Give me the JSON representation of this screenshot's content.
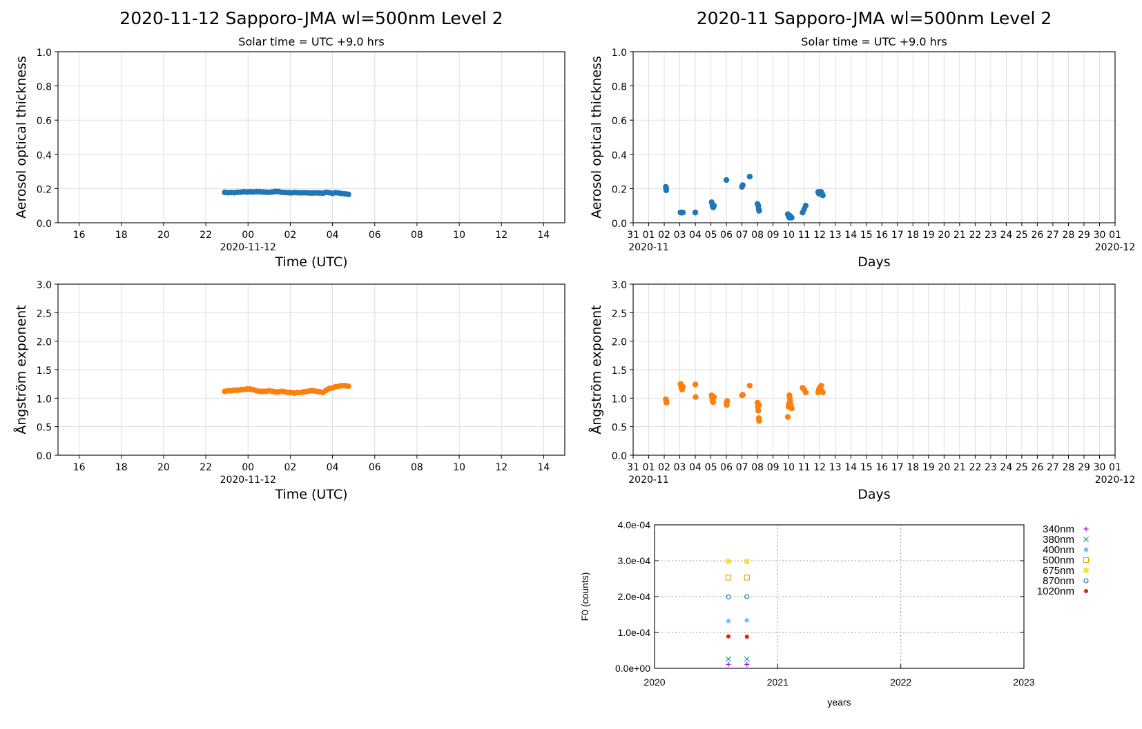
{
  "chart_data": [
    {
      "id": "daily-aot",
      "type": "scatter",
      "title": "2020-11-12  Sapporo-JMA  wl=500nm  Level 2",
      "subtitle": "Solar time = UTC +9.0 hrs",
      "xlabel": "Time (UTC)",
      "ylabel": "Aerosol optical thickness",
      "x_date_label": "2020-11-12",
      "xlim": [
        15,
        39
      ],
      "x_ticks": [
        {
          "v": 16,
          "label": "16"
        },
        {
          "v": 18,
          "label": "18"
        },
        {
          "v": 20,
          "label": "20"
        },
        {
          "v": 22,
          "label": "22"
        },
        {
          "v": 24,
          "label": "00"
        },
        {
          "v": 26,
          "label": "02"
        },
        {
          "v": 28,
          "label": "04"
        },
        {
          "v": 30,
          "label": "06"
        },
        {
          "v": 32,
          "label": "08"
        },
        {
          "v": 34,
          "label": "10"
        },
        {
          "v": 36,
          "label": "12"
        },
        {
          "v": 38,
          "label": "14"
        }
      ],
      "ylim": [
        0,
        1.0
      ],
      "y_ticks": [
        "0.0",
        "0.2",
        "0.4",
        "0.6",
        "0.8",
        "1.0"
      ],
      "color": "#1f77b4",
      "grid": true,
      "series": [
        {
          "x": [
            22.9,
            23.05,
            23.2,
            23.35,
            23.5,
            23.65,
            23.8,
            23.95,
            24.1,
            24.25,
            24.4,
            24.55,
            24.7,
            24.85,
            25.0,
            25.15,
            25.3,
            25.45,
            25.6,
            25.75,
            25.9,
            26.05,
            26.2,
            26.35,
            26.5,
            26.65,
            26.8,
            26.95,
            27.1,
            27.25,
            27.4,
            27.55,
            27.7,
            27.85,
            28.0,
            28.15,
            28.3,
            28.45,
            28.6,
            28.75
          ],
          "y": [
            0.178,
            0.176,
            0.177,
            0.176,
            0.178,
            0.179,
            0.181,
            0.18,
            0.181,
            0.18,
            0.182,
            0.181,
            0.18,
            0.179,
            0.178,
            0.18,
            0.183,
            0.182,
            0.178,
            0.177,
            0.176,
            0.175,
            0.177,
            0.176,
            0.175,
            0.176,
            0.175,
            0.174,
            0.174,
            0.175,
            0.174,
            0.173,
            0.178,
            0.176,
            0.172,
            0.176,
            0.174,
            0.171,
            0.169,
            0.166
          ]
        }
      ]
    },
    {
      "id": "monthly-aot",
      "type": "scatter",
      "title": "2020-11  Sapporo-JMA  wl=500nm  Level 2",
      "subtitle": "Solar time = UTC +9.0 hrs",
      "xlabel": "Days",
      "ylabel": "Aerosol optical thickness",
      "x_start_label": "2020-11",
      "x_end_label": "2020-12",
      "xlim": [
        -0.05,
        30.0
      ],
      "x_ticks_days": [
        "31",
        "01",
        "02",
        "03",
        "04",
        "05",
        "06",
        "07",
        "08",
        "09",
        "10",
        "11",
        "12",
        "13",
        "14",
        "15",
        "16",
        "17",
        "18",
        "19",
        "20",
        "21",
        "22",
        "23",
        "24",
        "25",
        "26",
        "27",
        "28",
        "29",
        "30",
        "01"
      ],
      "ylim": [
        0,
        1.0
      ],
      "y_ticks": [
        "0.0",
        "0.2",
        "0.4",
        "0.6",
        "0.8",
        "1.0"
      ],
      "color": "#1f77b4",
      "grid": true,
      "series": [
        {
          "x": [
            1.1,
            1.12,
            1.13,
            2.05,
            2.1,
            2.15,
            2.2,
            3.0,
            4.05,
            4.1,
            4.15,
            4.2,
            5.0,
            6.0,
            6.05,
            6.5,
            7.0,
            7.05,
            7.08,
            7.1,
            8.95,
            9.0,
            9.05,
            9.1,
            9.15,
            9.2,
            9.9,
            10.0,
            10.1,
            10.9,
            10.95,
            11.0,
            11.05,
            11.1,
            11.15,
            11.2
          ],
          "y": [
            0.21,
            0.2,
            0.19,
            0.06,
            0.06,
            0.06,
            0.06,
            0.06,
            0.12,
            0.1,
            0.09,
            0.1,
            0.25,
            0.21,
            0.22,
            0.27,
            0.11,
            0.1,
            0.08,
            0.07,
            0.05,
            0.04,
            0.03,
            0.04,
            0.03,
            0.03,
            0.06,
            0.08,
            0.1,
            0.18,
            0.17,
            0.18,
            0.17,
            0.18,
            0.17,
            0.16
          ]
        }
      ]
    },
    {
      "id": "daily-angstrom",
      "type": "scatter",
      "xlabel": "Time (UTC)",
      "ylabel": "Ångström exponent",
      "x_date_label": "2020-11-12",
      "xlim": [
        15,
        39
      ],
      "x_ticks": [
        {
          "v": 16,
          "label": "16"
        },
        {
          "v": 18,
          "label": "18"
        },
        {
          "v": 20,
          "label": "20"
        },
        {
          "v": 22,
          "label": "22"
        },
        {
          "v": 24,
          "label": "00"
        },
        {
          "v": 26,
          "label": "02"
        },
        {
          "v": 28,
          "label": "04"
        },
        {
          "v": 30,
          "label": "06"
        },
        {
          "v": 32,
          "label": "08"
        },
        {
          "v": 34,
          "label": "10"
        },
        {
          "v": 36,
          "label": "12"
        },
        {
          "v": 38,
          "label": "14"
        }
      ],
      "ylim": [
        0,
        3.0
      ],
      "y_ticks": [
        "0.0",
        "0.5",
        "1.0",
        "1.5",
        "2.0",
        "2.5",
        "3.0"
      ],
      "color": "#ff7f0e",
      "grid": true,
      "series": [
        {
          "x": [
            22.9,
            23.05,
            23.2,
            23.35,
            23.5,
            23.65,
            23.8,
            23.95,
            24.1,
            24.25,
            24.4,
            24.55,
            24.7,
            24.85,
            25.0,
            25.15,
            25.3,
            25.45,
            25.6,
            25.75,
            25.9,
            26.05,
            26.2,
            26.35,
            26.5,
            26.65,
            26.8,
            26.95,
            27.1,
            27.25,
            27.4,
            27.55,
            27.7,
            27.85,
            28.0,
            28.15,
            28.3,
            28.45,
            28.6,
            28.75
          ],
          "y": [
            1.12,
            1.13,
            1.13,
            1.14,
            1.14,
            1.15,
            1.15,
            1.16,
            1.16,
            1.15,
            1.13,
            1.12,
            1.12,
            1.12,
            1.13,
            1.12,
            1.11,
            1.11,
            1.12,
            1.11,
            1.1,
            1.1,
            1.09,
            1.1,
            1.1,
            1.11,
            1.12,
            1.13,
            1.13,
            1.12,
            1.11,
            1.1,
            1.14,
            1.17,
            1.18,
            1.2,
            1.21,
            1.22,
            1.22,
            1.21
          ]
        }
      ]
    },
    {
      "id": "monthly-angstrom",
      "type": "scatter",
      "xlabel": "Days",
      "ylabel": "Ångström exponent",
      "x_start_label": "2020-11",
      "x_end_label": "2020-12",
      "xlim": [
        -0.05,
        30.0
      ],
      "x_ticks_days": [
        "31",
        "01",
        "02",
        "03",
        "04",
        "05",
        "06",
        "07",
        "08",
        "09",
        "10",
        "11",
        "12",
        "13",
        "14",
        "15",
        "16",
        "17",
        "18",
        "19",
        "20",
        "21",
        "22",
        "23",
        "24",
        "25",
        "26",
        "27",
        "28",
        "29",
        "30",
        "01"
      ],
      "ylim": [
        0,
        3.0
      ],
      "y_ticks": [
        "0.0",
        "0.5",
        "1.0",
        "1.5",
        "2.0",
        "2.5",
        "3.0"
      ],
      "color": "#ff7f0e",
      "grid": true,
      "series": [
        {
          "x": [
            1.1,
            1.12,
            1.13,
            1.15,
            2.05,
            2.08,
            2.1,
            2.15,
            2.2,
            3.0,
            3.02,
            4.05,
            4.08,
            4.1,
            4.15,
            4.2,
            5.0,
            5.02,
            5.05,
            6.0,
            6.05,
            6.5,
            7.0,
            7.02,
            7.05,
            7.08,
            7.1,
            7.1,
            8.95,
            9.0,
            9.02,
            9.05,
            9.08,
            9.1,
            9.15,
            9.2,
            9.9,
            10.0,
            10.1,
            10.9,
            10.95,
            11.0,
            11.05,
            11.1,
            11.15,
            11.2
          ],
          "y": [
            0.98,
            0.96,
            0.93,
            0.92,
            1.25,
            1.22,
            1.18,
            1.15,
            1.2,
            1.24,
            1.02,
            1.05,
            1.01,
            0.96,
            0.93,
            1.02,
            0.92,
            0.88,
            0.95,
            1.05,
            1.06,
            1.22,
            0.92,
            0.85,
            0.78,
            0.65,
            0.6,
            0.88,
            0.67,
            0.85,
            0.9,
            1.05,
            1.0,
            0.95,
            0.88,
            0.82,
            1.18,
            1.15,
            1.1,
            1.1,
            1.15,
            1.18,
            1.2,
            1.22,
            1.12,
            1.1
          ]
        }
      ]
    },
    {
      "id": "f0-history",
      "type": "scatter",
      "xlabel": "years",
      "ylabel": "F0 (counts)",
      "xlim": [
        2020,
        2023
      ],
      "x_ticks": [
        "2020",
        "2021",
        "2022",
        "2023"
      ],
      "ylim": [
        0,
        0.0004
      ],
      "y_ticks": [
        "0.0e+00",
        "1.0e-04",
        "2.0e-04",
        "3.0e-04",
        "4.0e-04"
      ],
      "grid": true,
      "legend_position": "right-outside",
      "series": [
        {
          "name": "340nm",
          "marker": "plus",
          "color": "#9400d3",
          "x": [
            2020.6,
            2020.75
          ],
          "y": [
            1.1e-05,
            1.1e-05
          ]
        },
        {
          "name": "380nm",
          "marker": "cross",
          "color": "#009e73",
          "x": [
            2020.6,
            2020.75
          ],
          "y": [
            2.6e-05,
            2.6e-05
          ]
        },
        {
          "name": "400nm",
          "marker": "star",
          "color": "#56b4e9",
          "x": [
            2020.6,
            2020.75
          ],
          "y": [
            0.000132,
            0.000134
          ]
        },
        {
          "name": "500nm",
          "marker": "square-open",
          "color": "#e69f00",
          "x": [
            2020.6,
            2020.75
          ],
          "y": [
            0.000253,
            0.000253
          ]
        },
        {
          "name": "675nm",
          "marker": "square-filled",
          "color": "#f0e442",
          "x": [
            2020.6,
            2020.75
          ],
          "y": [
            0.000298,
            0.000298
          ]
        },
        {
          "name": "870nm",
          "marker": "circle-open",
          "color": "#0072b2",
          "x": [
            2020.6,
            2020.75
          ],
          "y": [
            0.000199,
            0.0002
          ]
        },
        {
          "name": "1020nm",
          "marker": "circle-filled",
          "color": "#e51e10",
          "x": [
            2020.6,
            2020.75
          ],
          "y": [
            8.9e-05,
            8.8e-05
          ]
        }
      ]
    }
  ]
}
